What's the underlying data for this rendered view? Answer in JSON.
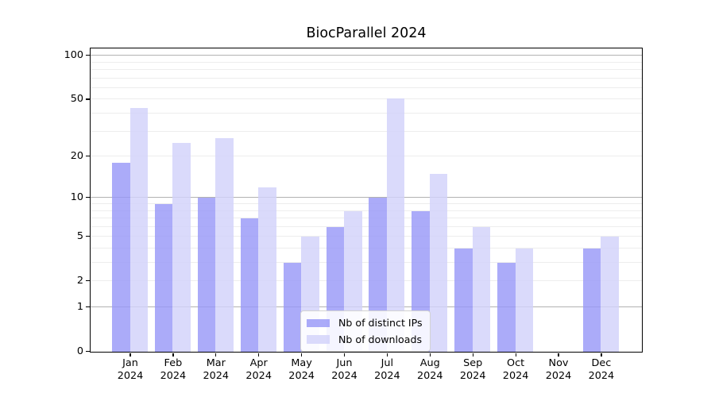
{
  "figure": {
    "title": "BiocParallel 2024"
  },
  "chart_data": {
    "type": "bar",
    "title": "BiocParallel 2024",
    "categories": [
      "Jan",
      "Feb",
      "Mar",
      "Apr",
      "May",
      "Jun",
      "Jul",
      "Aug",
      "Sep",
      "Oct",
      "Nov",
      "Dec"
    ],
    "x_tick_second_line": "2024",
    "series": [
      {
        "name": "Nb of distinct IPs",
        "color": "rgba(150,150,247,0.8)",
        "values": [
          18,
          9,
          10,
          7,
          3,
          6,
          10,
          8,
          4,
          3,
          0,
          4
        ]
      },
      {
        "name": "Nb of downloads",
        "color": "rgba(210,210,250,0.82)",
        "values": [
          44,
          25,
          27,
          12,
          5,
          8,
          51,
          15,
          6,
          4,
          0,
          5
        ]
      }
    ],
    "y_axis": {
      "scale": "log10(value+1)",
      "labeled_ticks": [
        0,
        1,
        2,
        5,
        10,
        20,
        50,
        100
      ],
      "major_gridlines": [
        1,
        10,
        100
      ],
      "minor_gridlines": [
        2,
        3,
        4,
        5,
        6,
        7,
        8,
        9,
        20,
        30,
        40,
        50,
        60,
        70,
        80,
        90
      ],
      "ylim": [
        0,
        100
      ]
    },
    "legend_position": "inside lower center",
    "colors": {
      "distinct_ips_rendered": "#acacf9",
      "downloads_rendered": "#dbdbf9",
      "major_grid": "#b2b2b2",
      "minor_grid": "#ededed",
      "axis": "#000000",
      "background": "#ffffff"
    }
  }
}
